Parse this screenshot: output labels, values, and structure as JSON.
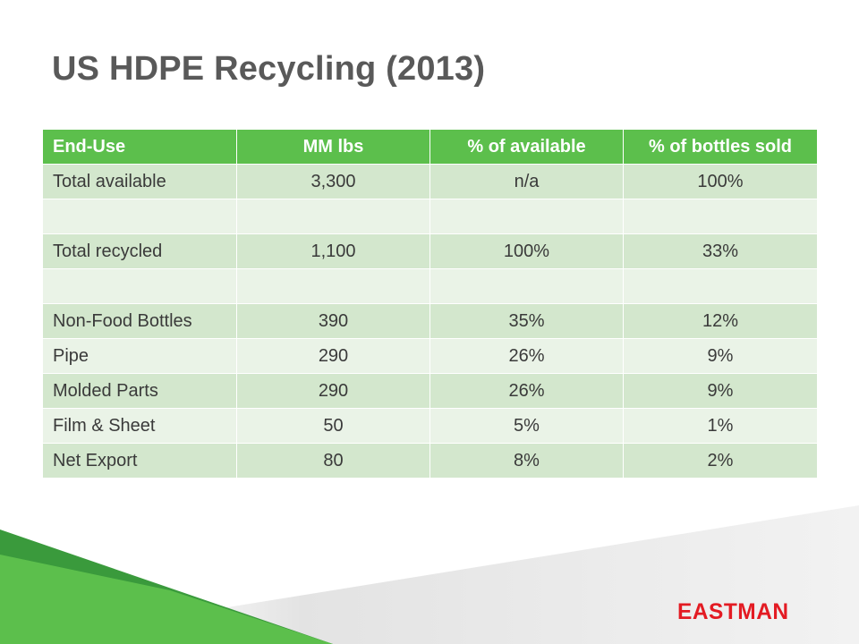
{
  "slide": {
    "title": "US HDPE Recycling (2013)"
  },
  "table": {
    "headers": [
      "End-Use",
      "MM lbs",
      "% of available",
      "% of bottles sold"
    ],
    "rows": [
      [
        "Total available",
        "3,300",
        "n/a",
        "100%"
      ],
      [
        "",
        "",
        "",
        ""
      ],
      [
        "Total recycled",
        "1,100",
        "100%",
        "33%"
      ],
      [
        "",
        "",
        "",
        ""
      ],
      [
        "Non-Food Bottles",
        "390",
        "35%",
        "12%"
      ],
      [
        "Pipe",
        "290",
        "26%",
        "9%"
      ],
      [
        "Molded Parts",
        "290",
        "26%",
        "9%"
      ],
      [
        "Film & Sheet",
        "50",
        "5%",
        "1%"
      ],
      [
        "Net Export",
        "80",
        "8%",
        "2%"
      ]
    ]
  },
  "logo": {
    "text": "EASTMAN"
  },
  "colors": {
    "title": "#595959",
    "header_bg": "#5cbf4c",
    "row_dark": "#d3e7cd",
    "row_light": "#eaf3e7",
    "logo": "#e31b23",
    "accent_green": "#5cbf4c"
  }
}
